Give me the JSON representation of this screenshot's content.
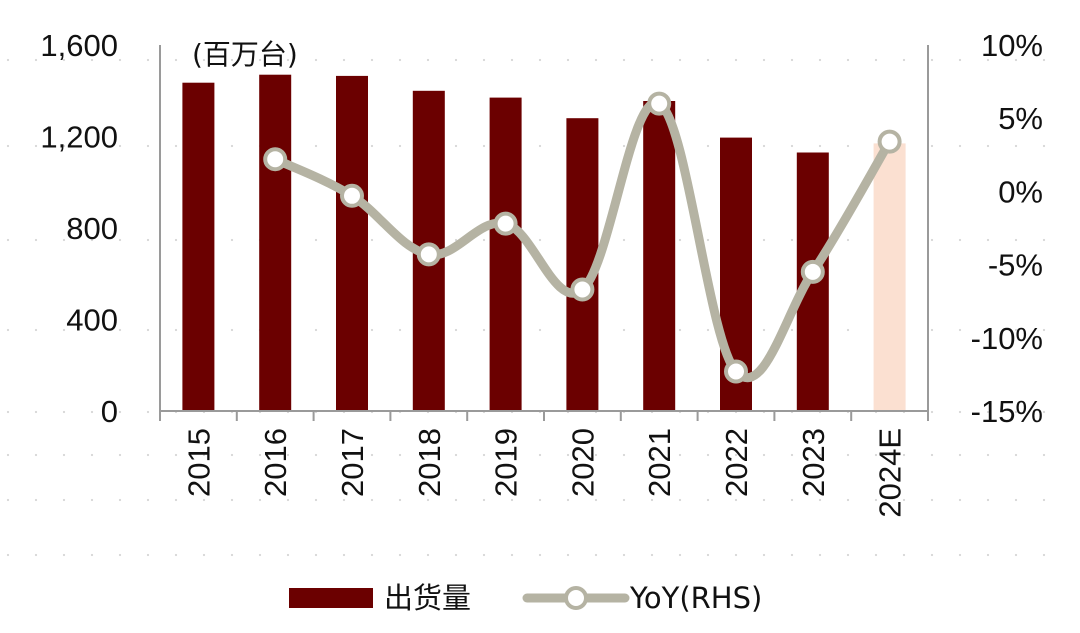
{
  "chart_data": {
    "type": "bar",
    "unit_label": "(百万台)",
    "categories": [
      "2015",
      "2016",
      "2017",
      "2018",
      "2019",
      "2020",
      "2021",
      "2022",
      "2023",
      "2024E"
    ],
    "series": [
      {
        "name": "出货量",
        "type": "bar",
        "axis": "left",
        "values": [
          1435,
          1470,
          1465,
          1400,
          1370,
          1280,
          1355,
          1195,
          1130,
          1170
        ],
        "color": "#6b0000",
        "estimate_color": "#fbe0d1"
      },
      {
        "name": "YoY(RHS)",
        "type": "line",
        "axis": "right",
        "values": [
          null,
          2.2,
          -0.3,
          -4.3,
          -2.2,
          -6.7,
          6.0,
          -12.3,
          -5.5,
          3.4
        ],
        "color": "#b5b3a3"
      }
    ],
    "y_left": {
      "min": 0,
      "max": 1600,
      "ticks": [
        0,
        400,
        800,
        1200,
        1600
      ],
      "tick_labels": [
        "0",
        "400",
        "800",
        "1,200",
        "1,600"
      ]
    },
    "y_right": {
      "min": -15,
      "max": 10,
      "ticks": [
        -15,
        -10,
        -5,
        0,
        5,
        10
      ],
      "tick_labels": [
        "-15%",
        "-10%",
        "-5%",
        "0%",
        "5%",
        "10%"
      ]
    },
    "grid": false,
    "legend_position": "bottom"
  }
}
